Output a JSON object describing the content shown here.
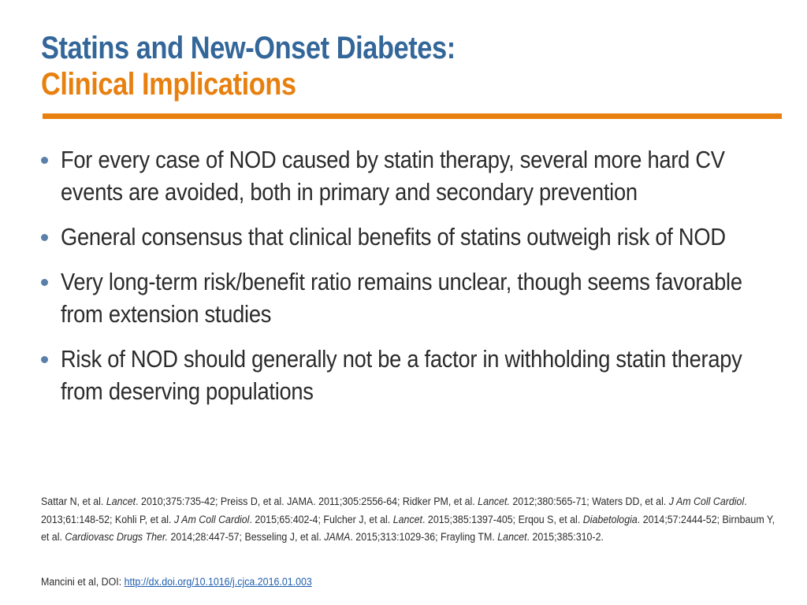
{
  "title": {
    "line1": "Statins and New-Onset Diabetes:",
    "line2": "Clinical Implications"
  },
  "bullets": [
    "For every case of NOD caused by statin therapy, several more hard CV events are avoided, both in primary and secondary prevention",
    "General consensus that clinical benefits of statins outweigh risk of NOD",
    "Very long-term risk/benefit ratio remains unclear, though seems favorable from extension studies",
    "Risk of NOD should generally not be a factor in withholding statin therapy from deserving populations"
  ],
  "references": {
    "r1_a": "Sattar N, et al. ",
    "r1_j": "Lancet",
    "r1_b": ". 2010;375:735-42; Preiss D, et al. JAMA. 2011;305:2556-64; Ridker PM, et al. ",
    "r2_j": "Lancet.",
    "r2_b": " 2012;380:565-71; Waters DD, et al. ",
    "r3_j": "J Am Coll Cardiol",
    "r3_b": ". 2013;61:148-52; Kohli P, et al. ",
    "r4_j": "J Am Coll Cardiol",
    "r4_b": ". 2015;65:402-4; Fulcher J, et al. ",
    "r5_j": "Lancet",
    "r5_b": ". 2015;385:1397-405; Erqou S, et al. ",
    "r6_j": "Diabetologia",
    "r6_b": ". 2014;57:2444-52; Birnbaum Y, et al. ",
    "r7_j": "Cardiovasc Drugs Ther.",
    "r7_b": " 2014;28:447-57; Besseling J, et al. ",
    "r8_j": "JAMA",
    "r8_b": ". 2015;313:1029-36; Frayling TM. ",
    "r9_j": "Lancet",
    "r9_b": ". 2015;385:310-2."
  },
  "source": {
    "prefix": "Mancini et al, DOI: ",
    "link_text": "http://dx.doi.org/10.1016/j.cjca.2016.01.003"
  }
}
